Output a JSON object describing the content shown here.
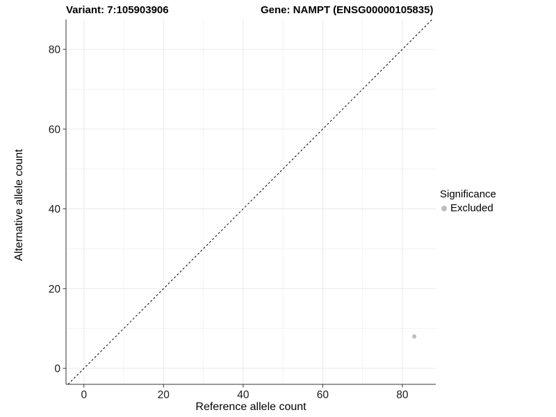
{
  "chart_data": {
    "type": "scatter",
    "title_left": "Variant: 7:105903906",
    "title_right": "Gene: NAMPT (ENSG00000105835)",
    "xlabel": "Reference allele count",
    "ylabel": "Alternative allele count",
    "xlim": [
      -4.5,
      88.4
    ],
    "ylim": [
      -4.0,
      87.5
    ],
    "xticks": [
      0,
      20,
      40,
      60,
      80
    ],
    "yticks": [
      0,
      20,
      40,
      60,
      80
    ],
    "minor_xticks": [
      10,
      30,
      50,
      70
    ],
    "minor_yticks": [
      10,
      30,
      50,
      70
    ],
    "grid": true,
    "legend_position": "right",
    "legend": {
      "title": "Significance",
      "items": [
        {
          "label": "Excluded",
          "color": "#bdbdbd",
          "marker": "circle-icon"
        }
      ]
    },
    "series": [
      {
        "name": "Excluded",
        "color": "#bdbdbd",
        "points": [
          {
            "x": 83,
            "y": 8
          }
        ]
      }
    ],
    "reference_line": {
      "type": "identity",
      "slope": 1,
      "intercept": 0,
      "style": "dashed",
      "color": "#000000"
    },
    "colors": {
      "background": "#ffffff",
      "axis_line": "#333333",
      "tick_label": "#1a1a1a",
      "grid_major": "#e8e8e8",
      "grid_minor": "#f3f3f3"
    }
  }
}
